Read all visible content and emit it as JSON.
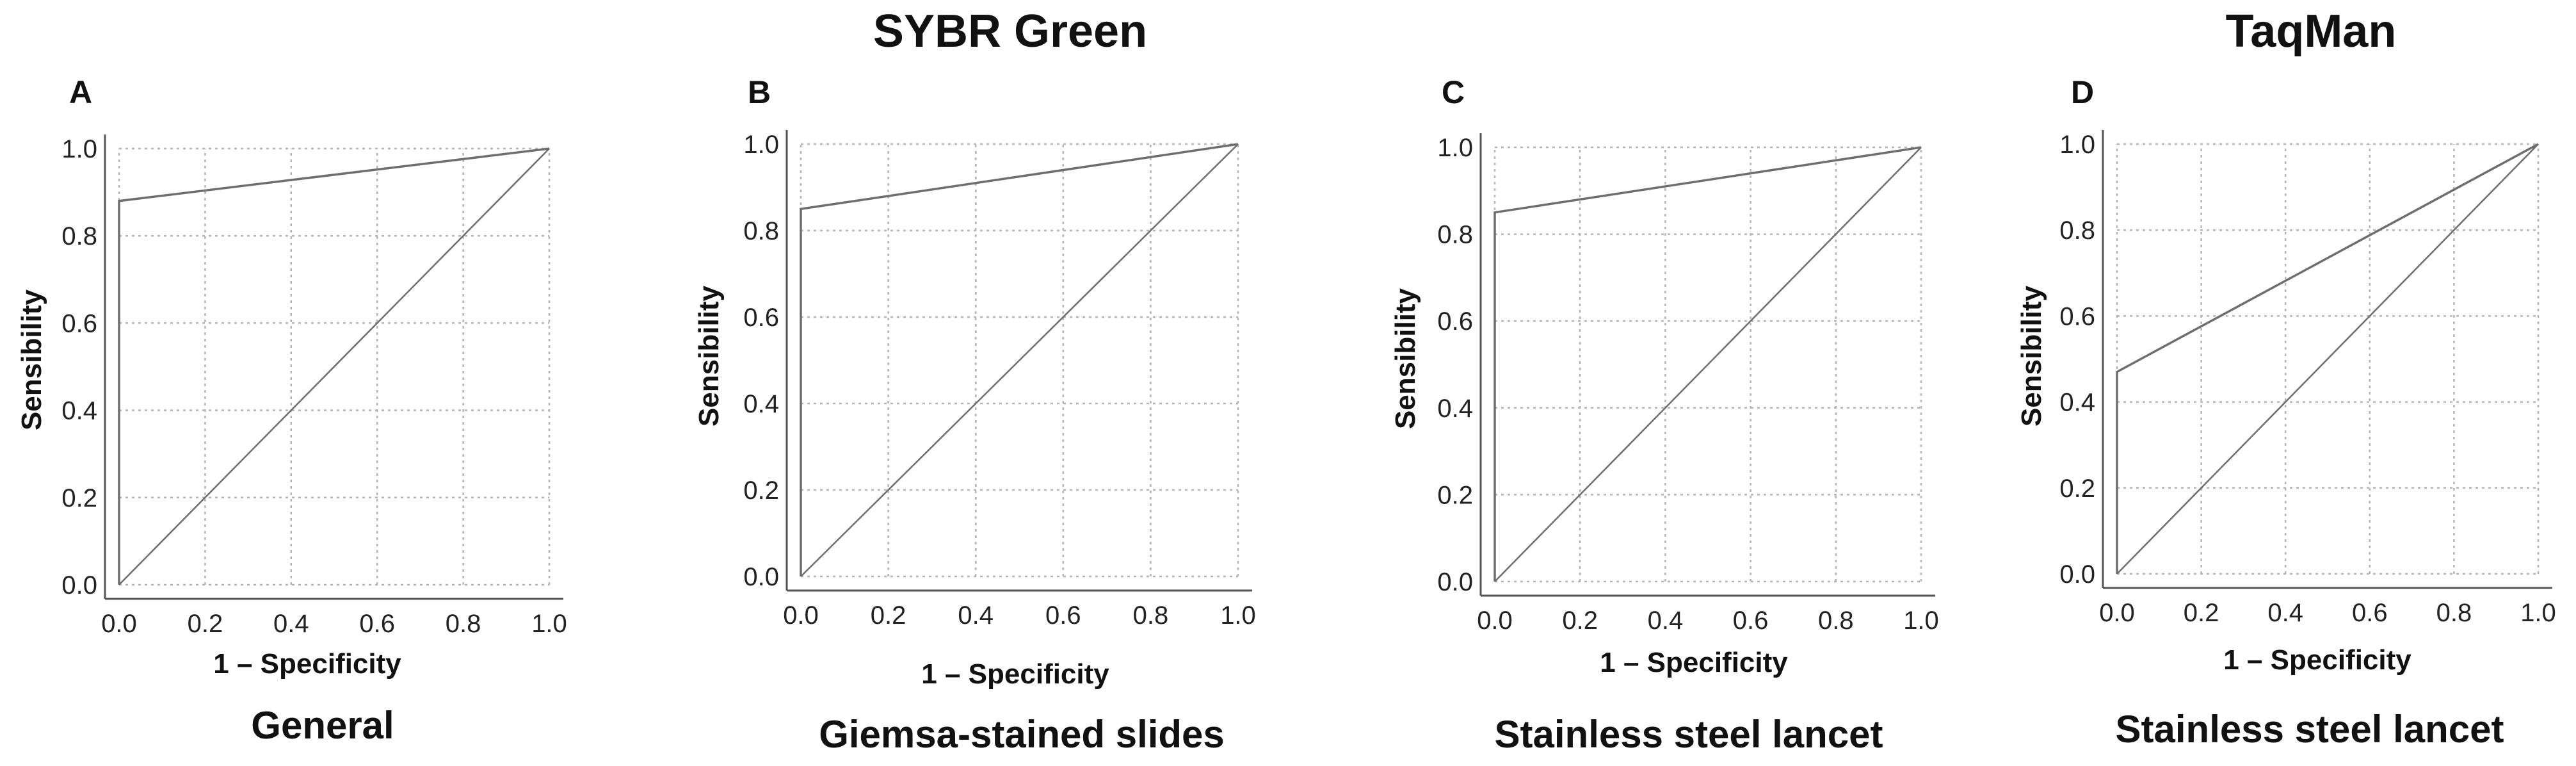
{
  "group_titles": {
    "sybr": "SYBR Green",
    "taqman": "TaqMan"
  },
  "chart_data": [
    {
      "type": "line",
      "panel": "A",
      "caption": "General",
      "xlabel": "1 – Specificity",
      "ylabel": "Sensibility",
      "xlim": [
        0,
        1
      ],
      "ylim": [
        0,
        1
      ],
      "ticks": [
        "0.0",
        "0.2",
        "0.4",
        "0.6",
        "0.8",
        "1.0"
      ],
      "grid": true,
      "series": [
        {
          "name": "ROC curve",
          "x": [
            0,
            0,
            1
          ],
          "y": [
            0,
            0.88,
            1
          ]
        },
        {
          "name": "Reference line",
          "x": [
            0,
            1
          ],
          "y": [
            0,
            1
          ]
        }
      ]
    },
    {
      "type": "line",
      "panel": "B",
      "caption": "Giemsa-stained slides",
      "xlabel": "1 – Specificity",
      "ylabel": "Sensibility",
      "xlim": [
        0,
        1
      ],
      "ylim": [
        0,
        1
      ],
      "ticks": [
        "0.0",
        "0.2",
        "0.4",
        "0.6",
        "0.8",
        "1.0"
      ],
      "grid": true,
      "series": [
        {
          "name": "ROC curve",
          "x": [
            0,
            0,
            1
          ],
          "y": [
            0,
            0.85,
            1
          ]
        },
        {
          "name": "Reference line",
          "x": [
            0,
            1
          ],
          "y": [
            0,
            1
          ]
        }
      ]
    },
    {
      "type": "line",
      "panel": "C",
      "caption": "Stainless steel lancet",
      "xlabel": "1 – Specificity",
      "ylabel": "Sensibility",
      "xlim": [
        0,
        1
      ],
      "ylim": [
        0,
        1
      ],
      "ticks": [
        "0.0",
        "0.2",
        "0.4",
        "0.6",
        "0.8",
        "1.0"
      ],
      "grid": true,
      "series": [
        {
          "name": "ROC curve",
          "x": [
            0,
            0,
            1
          ],
          "y": [
            0,
            0.85,
            1
          ]
        },
        {
          "name": "Reference line",
          "x": [
            0,
            1
          ],
          "y": [
            0,
            1
          ]
        }
      ]
    },
    {
      "type": "line",
      "panel": "D",
      "caption": "Stainless steel lancet",
      "xlabel": "1 – Specificity",
      "ylabel": "Sensibility",
      "xlim": [
        0,
        1
      ],
      "ylim": [
        0,
        1
      ],
      "ticks": [
        "0.0",
        "0.2",
        "0.4",
        "0.6",
        "0.8",
        "1.0"
      ],
      "grid": true,
      "series": [
        {
          "name": "ROC curve",
          "x": [
            0,
            0,
            1
          ],
          "y": [
            0,
            0.47,
            1
          ]
        },
        {
          "name": "Reference line",
          "x": [
            0,
            1
          ],
          "y": [
            0,
            1
          ]
        }
      ]
    }
  ]
}
